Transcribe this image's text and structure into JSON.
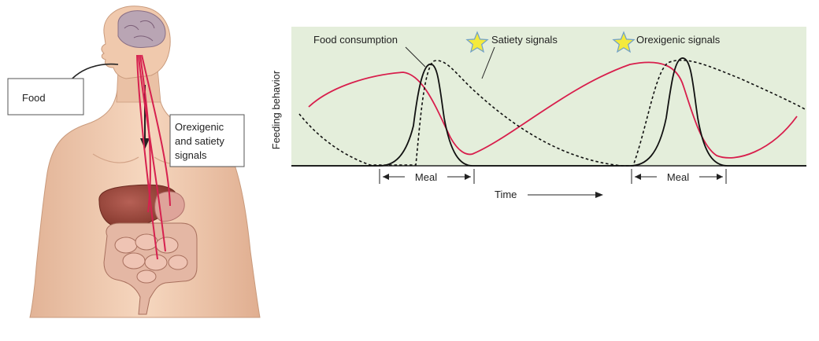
{
  "anatomy": {
    "food_label": "Food",
    "signals_label_lines": [
      "Orexigenic",
      "and satiety",
      "signals"
    ]
  },
  "chart": {
    "ylabel": "Feeding behavior",
    "xlabel": "Time",
    "legend": {
      "food_consumption": "Food consumption",
      "satiety": "Satiety signals",
      "orexigenic": "Orexigenic signals"
    },
    "meal_label_1": "Meal",
    "meal_label_2": "Meal"
  },
  "colors": {
    "chart_bg": "#e4eedb",
    "orexigenic": "#d81e4c",
    "consumption": "#111111",
    "satiety": "#111111",
    "star_fill": "#f4ea3c",
    "star_stroke": "#6fa0c8",
    "skin": "#efc6a8",
    "nerve": "#d6214f"
  },
  "icons": [
    "head-icon",
    "brain-icon",
    "liver-icon",
    "intestine-icon",
    "star-icon"
  ]
}
